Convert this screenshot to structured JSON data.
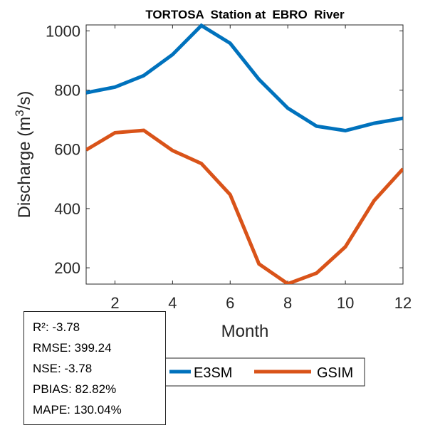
{
  "chart_data": {
    "type": "line",
    "title": "TORTOSA  Station at  EBRO  River",
    "xlabel": "Month",
    "ylabel": "Discharge (m³/s)",
    "ylabel_parts": {
      "pre": "Discharge (m",
      "sup": "3",
      "post": "/s)"
    },
    "xlim": [
      1,
      12
    ],
    "ylim": [
      145,
      1020
    ],
    "xticks": [
      2,
      4,
      6,
      8,
      10,
      12
    ],
    "yticks": [
      200,
      400,
      600,
      800,
      1000
    ],
    "grid": false,
    "legend_placement": "bottom-center-outside",
    "x": [
      1,
      2,
      3,
      4,
      5,
      6,
      7,
      8,
      9,
      10,
      11,
      12
    ],
    "series": [
      {
        "name": "E3SM",
        "color": "#0072BD",
        "values": [
          791,
          810,
          849,
          920,
          1018,
          958,
          836,
          739,
          678,
          663,
          688,
          705
        ]
      },
      {
        "name": "GSIM",
        "color": "#D95319",
        "values": [
          598,
          656,
          664,
          596,
          552,
          447,
          213,
          146,
          182,
          271,
          427,
          534
        ]
      }
    ]
  },
  "stats": {
    "r2": "R²: -3.78",
    "rmse": "RMSE: 399.24",
    "nse": "NSE: -3.78",
    "pbias": "PBIAS: 82.82%",
    "mape": "MAPE: 130.04%"
  }
}
